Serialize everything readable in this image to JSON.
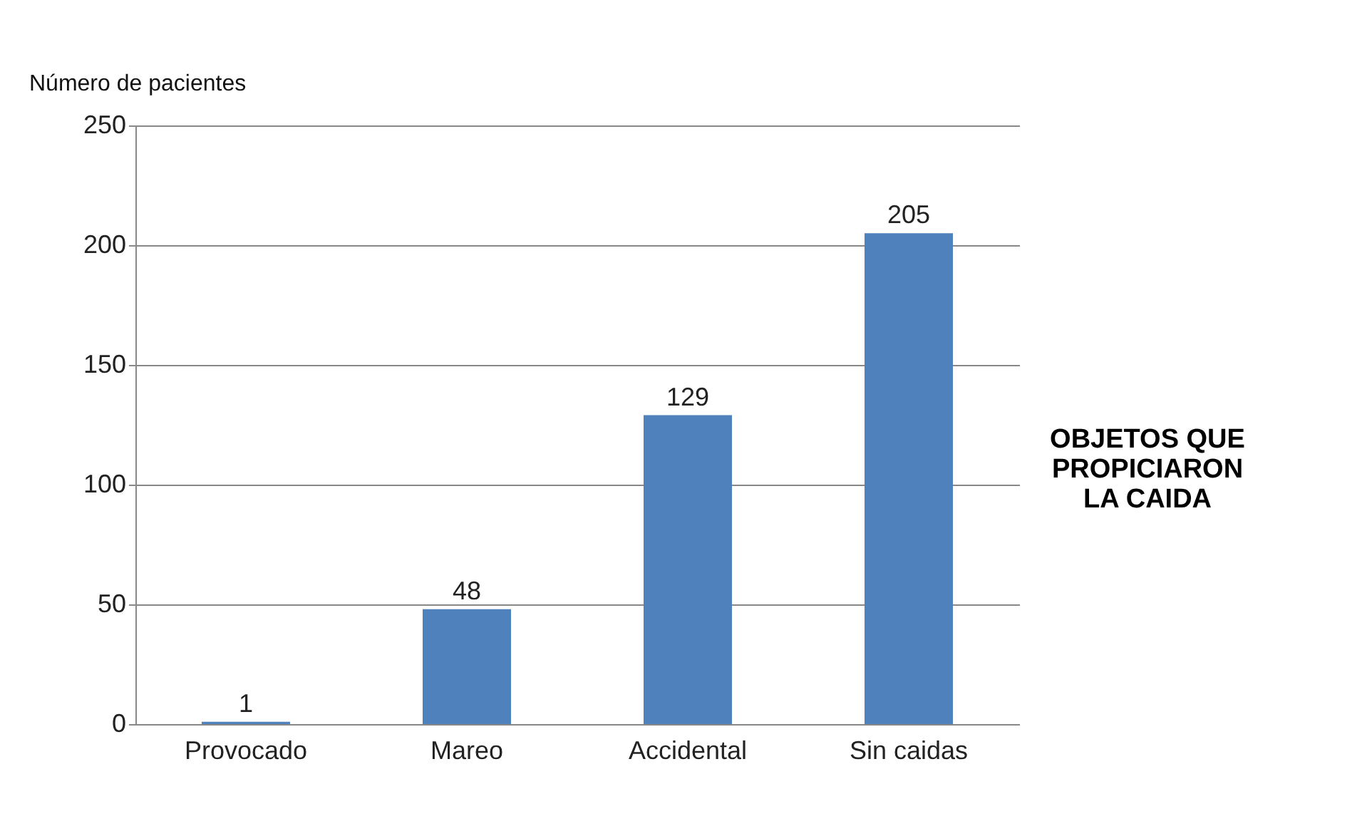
{
  "chart_data": {
    "type": "bar",
    "title": "OBJETOS QUE PROPICIARON LA CAIDA",
    "ylabel": "Número de pacientes",
    "categories": [
      "Provocado",
      "Mareo",
      "Accidental",
      "Sin caidas"
    ],
    "values": [
      1,
      48,
      129,
      205
    ],
    "color": "#4f81bd",
    "ylim": [
      0,
      250
    ],
    "yticks": [
      0,
      50,
      100,
      150,
      200,
      250
    ],
    "grid": "y",
    "data_labels": true
  }
}
